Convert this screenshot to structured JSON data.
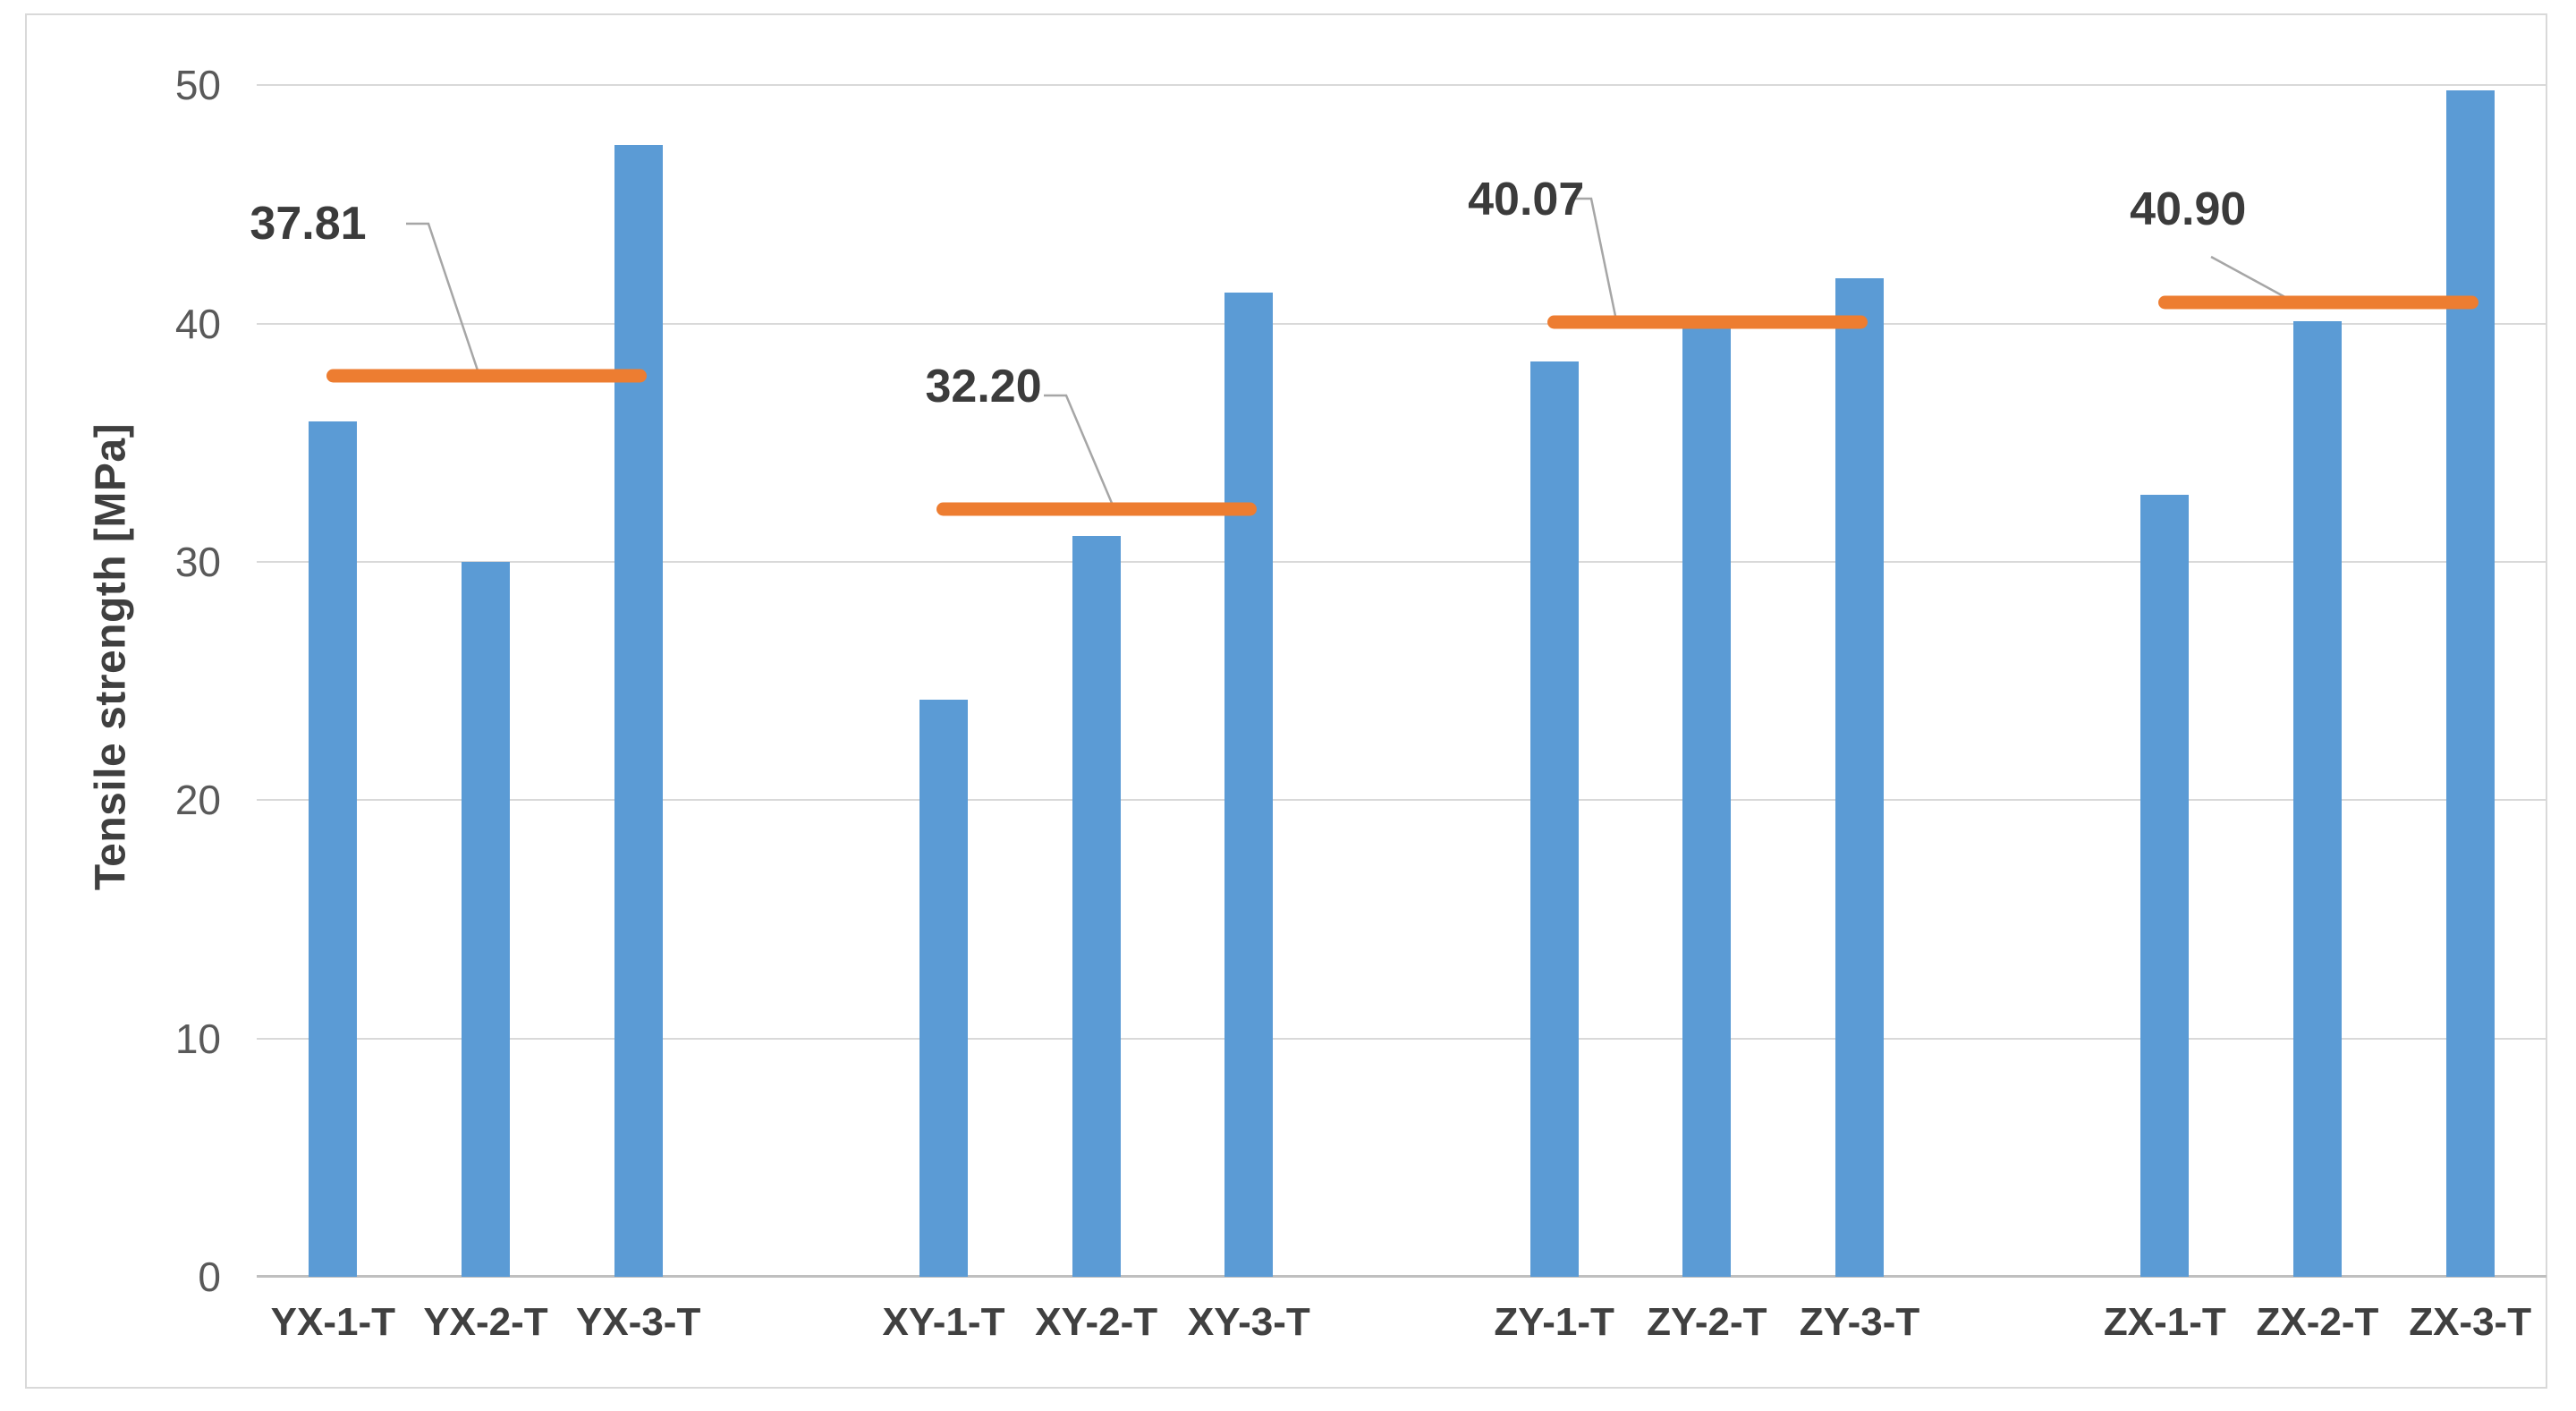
{
  "chart_data": {
    "type": "bar",
    "title": "",
    "xlabel": "",
    "ylabel": "Tensile strength [MPa]",
    "ylim": [
      0,
      50
    ],
    "yticks": [
      0,
      10,
      20,
      30,
      40,
      50
    ],
    "grid": "horizontal",
    "legend": "none",
    "bar_color": "#5B9BD5",
    "average_line_color": "#ED7D31",
    "groups": [
      {
        "categories": [
          "YX-1-T",
          "YX-2-T",
          "YX-3-T"
        ],
        "values": [
          35.9,
          30.0,
          47.5
        ],
        "average": 37.81,
        "average_label": "37.81"
      },
      {
        "categories": [
          "XY-1-T",
          "XY-2-T",
          "XY-3-T"
        ],
        "values": [
          24.2,
          31.1,
          41.3
        ],
        "average": 32.2,
        "average_label": "32.20"
      },
      {
        "categories": [
          "ZY-1-T",
          "ZY-2-T",
          "ZY-3-T"
        ],
        "values": [
          38.4,
          39.9,
          41.9
        ],
        "average": 40.07,
        "average_label": "40.07"
      },
      {
        "categories": [
          "ZX-1-T",
          "ZX-2-T",
          "ZX-3-T"
        ],
        "values": [
          32.8,
          40.1,
          49.8
        ],
        "average": 40.9,
        "average_label": "40.90"
      }
    ]
  }
}
